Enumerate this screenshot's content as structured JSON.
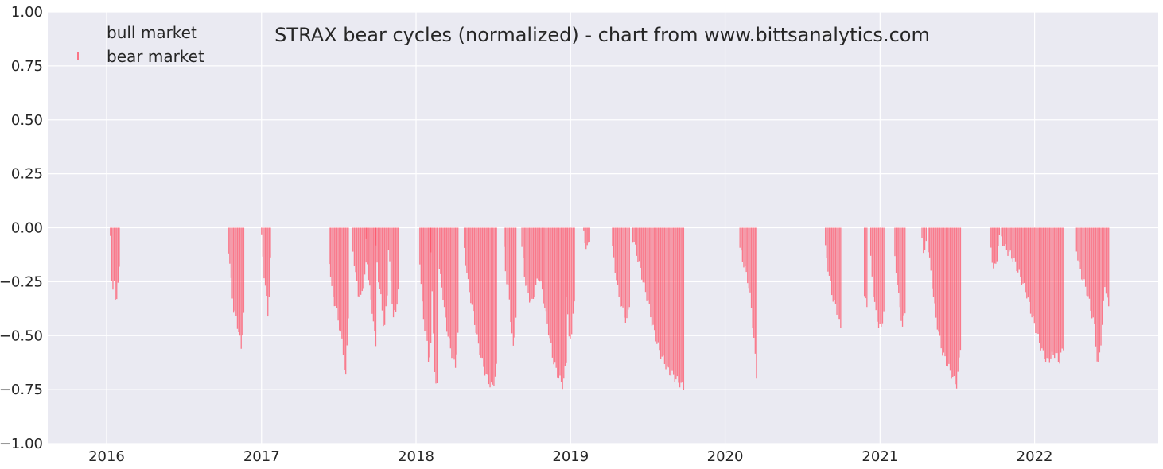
{
  "chart_data": {
    "type": "bar",
    "title": "STRAX bear cycles (normalized)  - chart from www.bittsanalytics.com",
    "xlabel": "",
    "ylabel": "",
    "ylim": [
      -1.0,
      1.0
    ],
    "xlim": [
      "2015-08-15",
      "2022-10-20"
    ],
    "grid": true,
    "legend_position": "top-left",
    "y_ticks": [
      "1.00",
      "0.75",
      "0.50",
      "0.25",
      "0.00",
      "−0.25",
      "−0.50",
      "−0.75",
      "−1.00"
    ],
    "y_tick_values": [
      1.0,
      0.75,
      0.5,
      0.25,
      0.0,
      -0.25,
      -0.5,
      -0.75,
      -1.0
    ],
    "x_ticks": [
      "2016",
      "2017",
      "2018",
      "2019",
      "2020",
      "2021",
      "2022"
    ],
    "x_tick_dates": [
      "2016-01-01",
      "2017-01-01",
      "2018-01-01",
      "2019-01-01",
      "2020-01-01",
      "2021-01-01",
      "2022-01-01"
    ],
    "colors": {
      "bear": "#ff4d63",
      "background": "#eaeaf2",
      "grid": "#ffffff"
    },
    "series": [
      {
        "name": "bull market",
        "color": "#4c72b0",
        "episodes": []
      },
      {
        "name": "bear market",
        "color": "#ff4d63",
        "episodes": [
          {
            "start": "2016-01-10",
            "end": "2016-01-31",
            "values": [
              -0.05,
              -0.3,
              -0.25,
              -0.35,
              -0.28,
              -0.2
            ]
          },
          {
            "start": "2016-10-15",
            "end": "2016-11-20",
            "values": [
              -0.1,
              -0.25,
              -0.38,
              -0.42,
              -0.48,
              -0.56,
              -0.4
            ]
          },
          {
            "start": "2017-01-01",
            "end": "2017-01-22",
            "values": [
              -0.05,
              -0.2,
              -0.3,
              -0.42,
              -0.15
            ]
          },
          {
            "start": "2017-06-10",
            "end": "2017-07-25",
            "values": [
              -0.15,
              -0.3,
              -0.35,
              -0.4,
              -0.48,
              -0.55,
              -0.72,
              -0.4
            ]
          },
          {
            "start": "2017-08-05",
            "end": "2017-09-05",
            "values": [
              -0.1,
              -0.22,
              -0.3,
              -0.33,
              -0.26,
              -0.18
            ]
          },
          {
            "start": "2017-09-05",
            "end": "2017-09-28",
            "values": [
              -0.05,
              -0.25,
              -0.32,
              -0.45,
              -0.53
            ]
          },
          {
            "start": "2017-09-28",
            "end": "2017-10-25",
            "values": [
              -0.1,
              -0.25,
              -0.35,
              -0.48,
              -0.3
            ]
          },
          {
            "start": "2017-10-28",
            "end": "2017-11-20",
            "values": [
              -0.1,
              -0.25,
              -0.42,
              -0.38,
              -0.3
            ]
          },
          {
            "start": "2018-01-10",
            "end": "2018-02-05",
            "values": [
              -0.15,
              -0.35,
              -0.45,
              -0.5,
              -0.62,
              -0.55
            ]
          },
          {
            "start": "2018-02-05",
            "end": "2018-02-20",
            "values": [
              -0.1,
              -0.45,
              -0.7,
              -0.74
            ]
          },
          {
            "start": "2018-02-25",
            "end": "2018-04-10",
            "values": [
              -0.2,
              -0.27,
              -0.4,
              -0.48,
              -0.55,
              -0.6,
              -0.65,
              -0.5
            ]
          },
          {
            "start": "2018-04-25",
            "end": "2018-07-10",
            "values": [
              -0.1,
              -0.25,
              -0.35,
              -0.45,
              -0.55,
              -0.62,
              -0.68,
              -0.72,
              -0.74,
              -0.65
            ]
          },
          {
            "start": "2018-07-28",
            "end": "2018-08-25",
            "values": [
              -0.1,
              -0.25,
              -0.3,
              -0.45,
              -0.58,
              -0.4
            ]
          },
          {
            "start": "2018-09-08",
            "end": "2018-12-22",
            "values": [
              -0.1,
              -0.25,
              -0.32,
              -0.35,
              -0.28,
              -0.22,
              -0.3,
              -0.4,
              -0.5,
              -0.6,
              -0.66,
              -0.7,
              -0.73,
              -0.62
            ]
          },
          {
            "start": "2018-12-22",
            "end": "2019-01-10",
            "values": [
              -0.3,
              -0.52,
              -0.48,
              -0.35
            ]
          },
          {
            "start": "2019-02-01",
            "end": "2019-02-15",
            "values": [
              -0.03,
              -0.08,
              -0.1,
              -0.05
            ]
          },
          {
            "start": "2019-04-10",
            "end": "2019-05-20",
            "values": [
              -0.1,
              -0.2,
              -0.3,
              -0.36,
              -0.4,
              -0.44,
              -0.35
            ]
          },
          {
            "start": "2019-05-28",
            "end": "2019-09-25",
            "values": [
              -0.05,
              -0.12,
              -0.2,
              -0.28,
              -0.35,
              -0.45,
              -0.52,
              -0.58,
              -0.62,
              -0.66,
              -0.68,
              -0.7,
              -0.72,
              -0.74
            ]
          },
          {
            "start": "2020-02-05",
            "end": "2020-03-15",
            "values": [
              -0.1,
              -0.15,
              -0.2,
              -0.25,
              -0.35,
              -0.5,
              -0.69
            ]
          },
          {
            "start": "2020-08-25",
            "end": "2020-09-30",
            "values": [
              -0.1,
              -0.2,
              -0.3,
              -0.35,
              -0.4,
              -0.47
            ]
          },
          {
            "start": "2020-11-25",
            "end": "2020-12-01",
            "values": [
              -0.3,
              -0.38
            ]
          },
          {
            "start": "2020-12-10",
            "end": "2021-01-10",
            "values": [
              -0.15,
              -0.3,
              -0.4,
              -0.45,
              -0.47,
              -0.38
            ]
          },
          {
            "start": "2021-02-05",
            "end": "2021-03-01",
            "values": [
              -0.15,
              -0.25,
              -0.38,
              -0.45,
              -0.4
            ]
          },
          {
            "start": "2021-04-10",
            "end": "2021-04-20",
            "values": [
              -0.05,
              -0.12,
              -0.08
            ]
          },
          {
            "start": "2021-04-25",
            "end": "2021-07-10",
            "values": [
              -0.1,
              -0.25,
              -0.4,
              -0.5,
              -0.58,
              -0.62,
              -0.66,
              -0.7,
              -0.73,
              -0.55
            ]
          },
          {
            "start": "2021-09-20",
            "end": "2021-10-10",
            "values": [
              -0.1,
              -0.2,
              -0.15,
              -0.05
            ]
          },
          {
            "start": "2021-10-15",
            "end": "2022-03-10",
            "values": [
              -0.05,
              -0.1,
              -0.12,
              -0.15,
              -0.2,
              -0.25,
              -0.3,
              -0.38,
              -0.45,
              -0.52,
              -0.58,
              -0.62,
              -0.6,
              -0.58,
              -0.62,
              -0.55
            ]
          },
          {
            "start": "2022-04-10",
            "end": "2022-06-25",
            "values": [
              -0.1,
              -0.2,
              -0.25,
              -0.3,
              -0.38,
              -0.45,
              -0.66,
              -0.5,
              -0.25,
              -0.38
            ]
          }
        ]
      }
    ]
  }
}
